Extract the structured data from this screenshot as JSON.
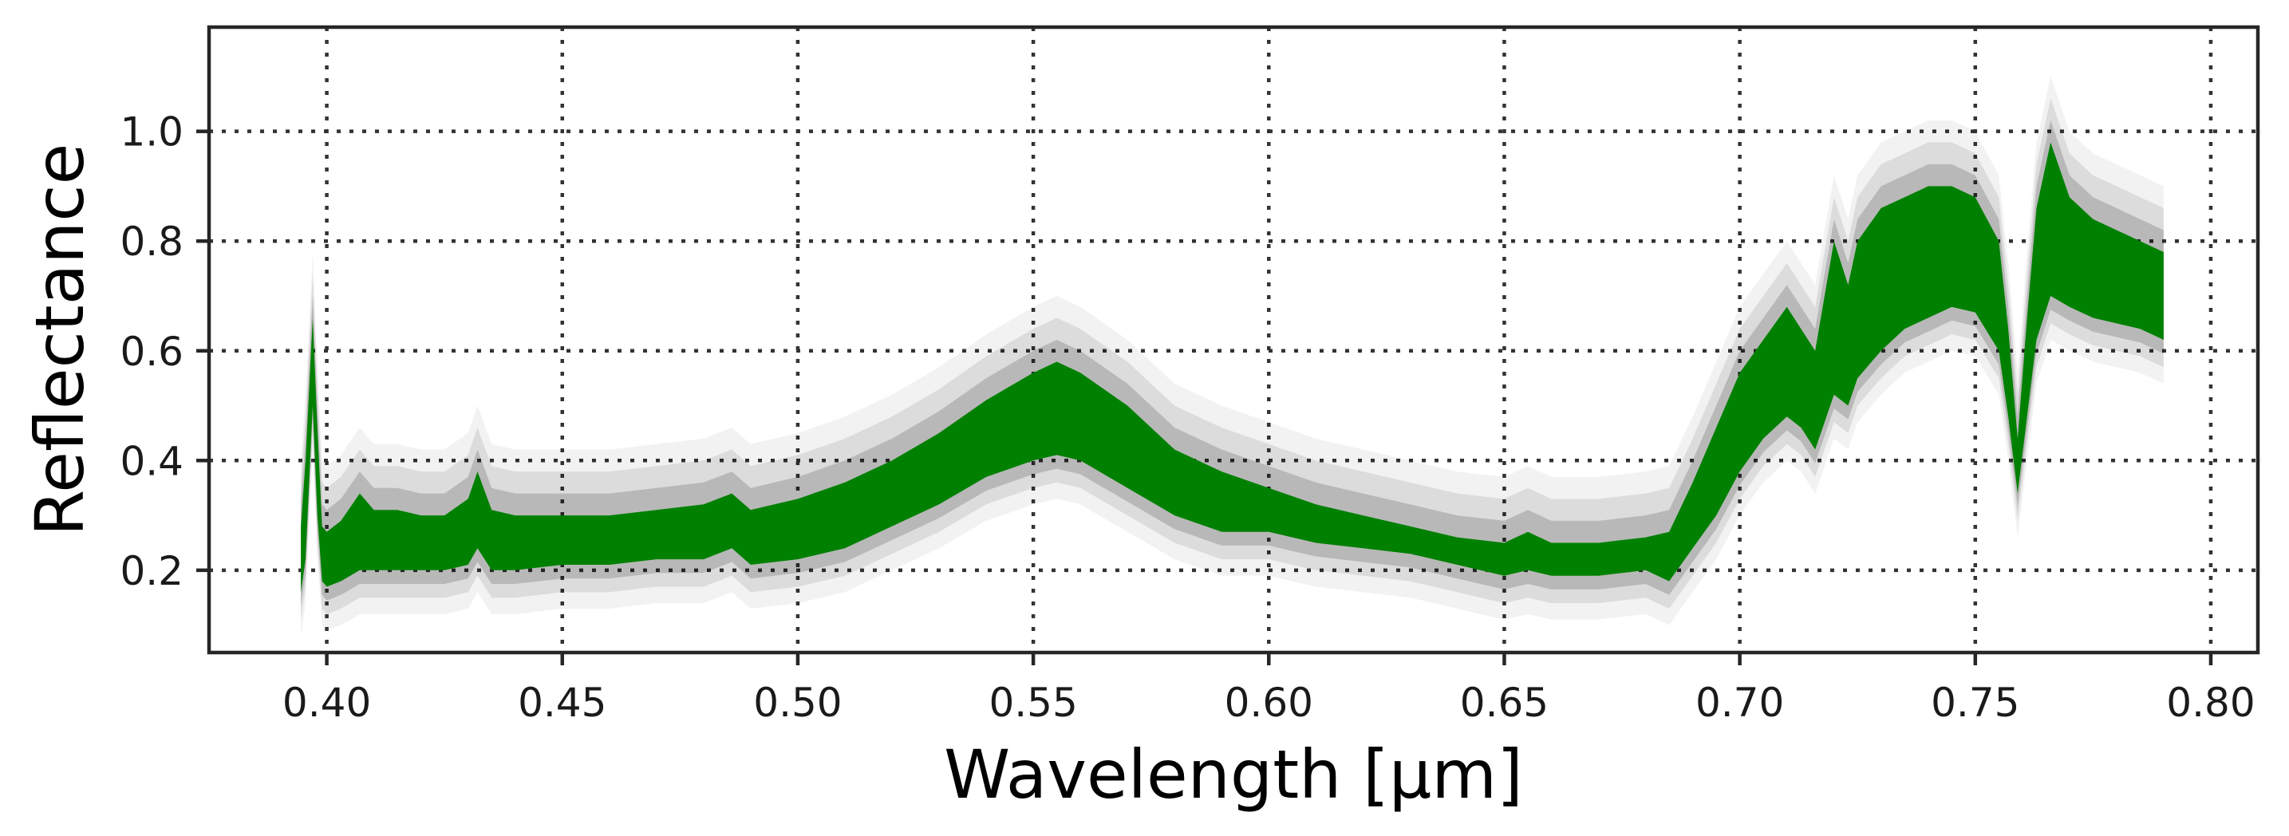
{
  "chart_data": {
    "type": "area",
    "title": "",
    "xlabel": "Wavelength [μm]",
    "ylabel": "Reflectance",
    "xlim": [
      0.375,
      0.81
    ],
    "ylim": [
      0.05,
      1.19
    ],
    "x_ticks": [
      0.4,
      0.45,
      0.5,
      0.55,
      0.6,
      0.65,
      0.7,
      0.75,
      0.8
    ],
    "x_tick_labels": [
      "0.40",
      "0.45",
      "0.50",
      "0.55",
      "0.60",
      "0.65",
      "0.70",
      "0.75",
      "0.80"
    ],
    "y_ticks": [
      0.2,
      0.4,
      0.6,
      0.8,
      1.0
    ],
    "y_tick_labels": [
      "0.2",
      "0.4",
      "0.6",
      "0.8",
      "1.0"
    ],
    "grid": true,
    "grid_style": "dotted",
    "legend": "none",
    "colors": {
      "band": "#008000",
      "spread": "#000000",
      "frame": "#262626",
      "grid": "#333333"
    },
    "series": [
      {
        "x": [
          0.3945,
          0.3955,
          0.397,
          0.398,
          0.399,
          0.4,
          0.403,
          0.407,
          0.41,
          0.415,
          0.42,
          0.425,
          0.43,
          0.432,
          0.435,
          0.44,
          0.45,
          0.46,
          0.47,
          0.48,
          0.486,
          0.49,
          0.5,
          0.51,
          0.52,
          0.53,
          0.54,
          0.55,
          0.555,
          0.56,
          0.57,
          0.58,
          0.59,
          0.6,
          0.61,
          0.62,
          0.63,
          0.64,
          0.65,
          0.655,
          0.66,
          0.67,
          0.68,
          0.685,
          0.69,
          0.695,
          0.7,
          0.705,
          0.71,
          0.713,
          0.716,
          0.718,
          0.72,
          0.723,
          0.725,
          0.73,
          0.735,
          0.74,
          0.745,
          0.75,
          0.755,
          0.757,
          0.759,
          0.761,
          0.763,
          0.766,
          0.77,
          0.775,
          0.78,
          0.785,
          0.79
        ],
        "lower": [
          0.16,
          0.22,
          0.5,
          0.3,
          0.18,
          0.17,
          0.18,
          0.2,
          0.2,
          0.2,
          0.2,
          0.2,
          0.21,
          0.24,
          0.2,
          0.2,
          0.21,
          0.21,
          0.22,
          0.22,
          0.24,
          0.21,
          0.22,
          0.24,
          0.28,
          0.32,
          0.37,
          0.4,
          0.41,
          0.4,
          0.35,
          0.3,
          0.27,
          0.27,
          0.25,
          0.24,
          0.23,
          0.21,
          0.19,
          0.2,
          0.19,
          0.19,
          0.2,
          0.18,
          0.24,
          0.3,
          0.38,
          0.44,
          0.48,
          0.46,
          0.42,
          0.47,
          0.52,
          0.5,
          0.55,
          0.6,
          0.64,
          0.66,
          0.68,
          0.67,
          0.6,
          0.48,
          0.34,
          0.48,
          0.62,
          0.7,
          0.68,
          0.66,
          0.65,
          0.64,
          0.62
        ],
        "upper": [
          0.28,
          0.4,
          0.66,
          0.46,
          0.28,
          0.27,
          0.29,
          0.34,
          0.31,
          0.31,
          0.3,
          0.3,
          0.33,
          0.38,
          0.31,
          0.3,
          0.3,
          0.3,
          0.31,
          0.32,
          0.34,
          0.31,
          0.33,
          0.36,
          0.4,
          0.45,
          0.51,
          0.56,
          0.58,
          0.56,
          0.5,
          0.42,
          0.38,
          0.35,
          0.32,
          0.3,
          0.28,
          0.26,
          0.25,
          0.27,
          0.25,
          0.25,
          0.26,
          0.27,
          0.36,
          0.46,
          0.56,
          0.62,
          0.68,
          0.64,
          0.6,
          0.7,
          0.8,
          0.72,
          0.8,
          0.86,
          0.88,
          0.9,
          0.9,
          0.88,
          0.8,
          0.64,
          0.44,
          0.66,
          0.86,
          0.98,
          0.88,
          0.84,
          0.82,
          0.8,
          0.78
        ]
      }
    ]
  }
}
